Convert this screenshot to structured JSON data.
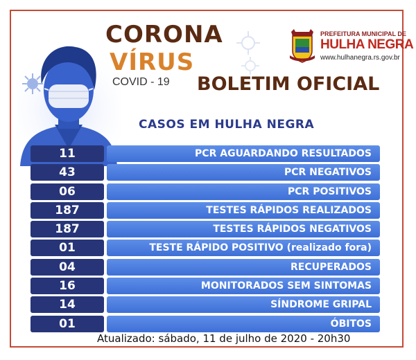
{
  "header": {
    "title_line1": "CORONA",
    "title_line2": "VÍRUS",
    "title_line3": "COVID - 19",
    "bulletin": "BOLETIM OFICIAL"
  },
  "logo": {
    "line1": "PREFEITURA MUNICIPAL DE",
    "line2": "HULHA NEGRA",
    "line3": "www.hulhanegra.rs.gov.br"
  },
  "subtitle": "CASOS EM HULHA NEGRA",
  "rows": [
    {
      "value": "11",
      "label": "PCR AGUARDANDO RESULTADOS"
    },
    {
      "value": "43",
      "label": "PCR NEGATIVOS"
    },
    {
      "value": "06",
      "label": "PCR POSITIVOS"
    },
    {
      "value": "187",
      "label": "TESTES RÁPIDOS REALIZADOS"
    },
    {
      "value": "187",
      "label": "TESTES RÁPIDOS NEGATIVOS"
    },
    {
      "value": "01",
      "label": "TESTE RÁPIDO POSITIVO (realizado fora)"
    },
    {
      "value": "04",
      "label": "RECUPERADOS"
    },
    {
      "value": "16",
      "label": "MONITORADOS SEM SINTOMAS"
    },
    {
      "value": "14",
      "label": "SÍNDROME GRIPAL"
    },
    {
      "value": "01",
      "label": "ÓBITOS"
    }
  ],
  "footer": "Atualizado: sábado, 11 de julho de 2020 - 20h30",
  "colors": {
    "border": "#c44a36",
    "number_box": "#273578",
    "label_box": "#4a7ddf",
    "title_dark": "#5a2a12",
    "title_orange": "#d9822b",
    "subtitle": "#2b3a8c"
  },
  "icons": [
    "person-with-mask-illustration",
    "virus-icon",
    "municipal-crest-icon"
  ]
}
